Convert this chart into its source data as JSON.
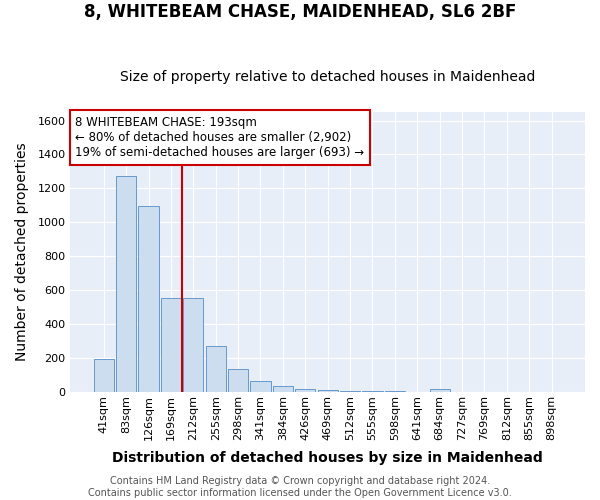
{
  "title": "8, WHITEBEAM CHASE, MAIDENHEAD, SL6 2BF",
  "subtitle": "Size of property relative to detached houses in Maidenhead",
  "xlabel": "Distribution of detached houses by size in Maidenhead",
  "ylabel": "Number of detached properties",
  "bar_labels": [
    "41sqm",
    "83sqm",
    "126sqm",
    "169sqm",
    "212sqm",
    "255sqm",
    "298sqm",
    "341sqm",
    "384sqm",
    "426sqm",
    "469sqm",
    "512sqm",
    "555sqm",
    "598sqm",
    "641sqm",
    "684sqm",
    "727sqm",
    "769sqm",
    "812sqm",
    "855sqm",
    "898sqm"
  ],
  "bar_values": [
    196,
    1272,
    1098,
    553,
    556,
    271,
    133,
    62,
    35,
    18,
    12,
    8,
    6,
    4,
    0,
    18,
    0,
    0,
    0,
    0,
    0
  ],
  "bar_color": "#ccddf0",
  "bar_edge_color": "#6699cc",
  "ylim": [
    0,
    1650
  ],
  "yticks": [
    0,
    200,
    400,
    600,
    800,
    1000,
    1200,
    1400,
    1600
  ],
  "property_line_label": "8 WHITEBEAM CHASE: 193sqm",
  "annotation_line1": "← 80% of detached houses are smaller (2,902)",
  "annotation_line2": "19% of semi-detached houses are larger (693) →",
  "red_line_x": 3.5,
  "footer_line1": "Contains HM Land Registry data © Crown copyright and database right 2024.",
  "footer_line2": "Contains public sector information licensed under the Open Government Licence v3.0.",
  "bg_color": "#ffffff",
  "plot_bg_color": "#e8eef8",
  "grid_color": "#ffffff",
  "title_fontsize": 12,
  "subtitle_fontsize": 10,
  "axis_label_fontsize": 10,
  "tick_fontsize": 8,
  "footer_fontsize": 7,
  "annot_fontsize": 8.5
}
